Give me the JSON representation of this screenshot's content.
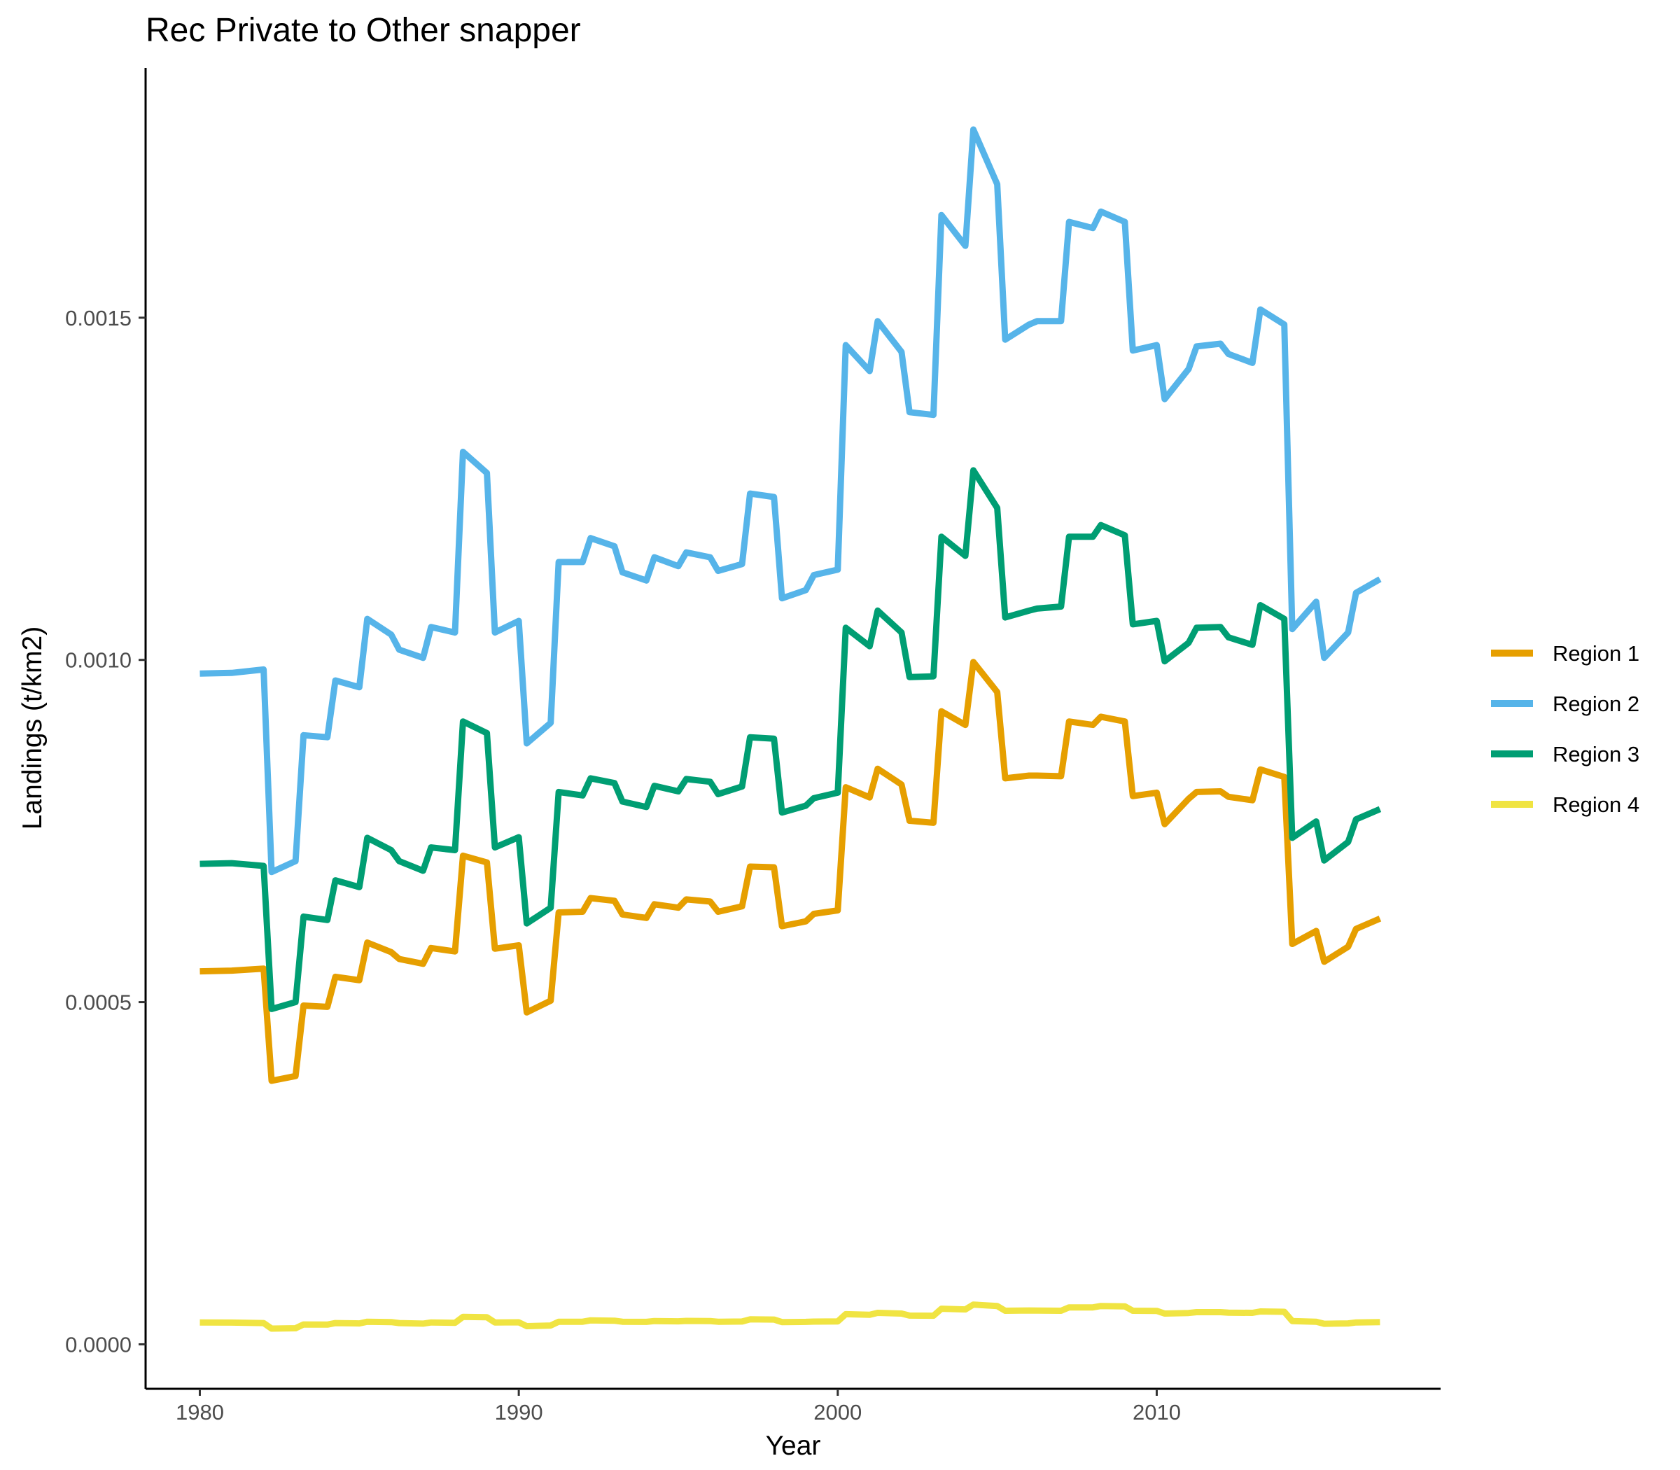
{
  "chart_data": {
    "type": "line",
    "title": "Rec Private to Other snapper",
    "xlabel": "Year",
    "ylabel": "Landings (t/km2)",
    "xlim": [
      1978.3,
      2018.9
    ],
    "ylim": [
      -6.5e-05,
      0.001865
    ],
    "xticks": [
      1980,
      1990,
      2000,
      2010
    ],
    "xtick_labels": [
      "1980",
      "1990",
      "2000",
      "2010"
    ],
    "yticks": [
      0.0,
      0.0005,
      0.001,
      0.0015
    ],
    "ytick_labels": [
      "0.0000",
      "0.0005",
      "0.0010",
      "0.0015"
    ],
    "grid": false,
    "legend_position": "right",
    "x": [
      1980.0,
      1981.0,
      1982.0,
      1982.25,
      1983.0,
      1983.25,
      1984.0,
      1984.25,
      1985.0,
      1985.25,
      1986.0,
      1986.25,
      1987.0,
      1987.25,
      1988.0,
      1988.25,
      1989.0,
      1989.25,
      1990.0,
      1990.25,
      1991.0,
      1991.25,
      1992.0,
      1992.25,
      1993.0,
      1993.25,
      1994.0,
      1994.25,
      1995.0,
      1995.25,
      1996.0,
      1996.25,
      1997.0,
      1997.25,
      1998.0,
      1998.25,
      1999.0,
      1999.25,
      2000.0,
      2000.25,
      2001.0,
      2001.25,
      2002.0,
      2002.25,
      2003.0,
      2003.25,
      2004.0,
      2004.25,
      2005.0,
      2005.25,
      2006.0,
      2006.25,
      2007.0,
      2007.25,
      2008.0,
      2008.25,
      2009.0,
      2009.25,
      2010.0,
      2010.25,
      2011.0,
      2011.25,
      2012.0,
      2012.25,
      2013.0,
      2013.25,
      2014.0,
      2014.25,
      2015.0,
      2015.25,
      2016.0,
      2016.25,
      2017.0
    ],
    "series": [
      {
        "name": "Region 1",
        "color": "#E69F00",
        "values": [
          0.000545,
          0.000546,
          0.000549,
          0.000385,
          0.000392,
          0.000495,
          0.000493,
          0.000537,
          0.000532,
          0.000587,
          0.000573,
          0.000563,
          0.000556,
          0.000579,
          0.000574,
          0.000714,
          0.000704,
          0.000578,
          0.000583,
          0.000485,
          0.000502,
          0.000631,
          0.000632,
          0.000652,
          0.000648,
          0.000628,
          0.000623,
          0.000643,
          0.000638,
          0.00065,
          0.000647,
          0.000632,
          0.00064,
          0.000698,
          0.000697,
          0.000611,
          0.000618,
          0.000629,
          0.000634,
          0.000814,
          0.000799,
          0.000841,
          0.000818,
          0.000765,
          0.000762,
          0.000925,
          0.000905,
          0.000997,
          0.000953,
          0.000827,
          0.000831,
          0.000831,
          0.00083,
          0.00091,
          0.000905,
          0.000917,
          0.00091,
          0.000801,
          0.000806,
          0.00076,
          0.000797,
          0.000807,
          0.000808,
          0.0008,
          0.000795,
          0.00084,
          0.000829,
          0.000585,
          0.000604,
          0.000559,
          0.000581,
          0.000607,
          0.000622
        ]
      },
      {
        "name": "Region 2",
        "color": "#56B4E9",
        "values": [
          0.00098,
          0.000981,
          0.000986,
          0.00069,
          0.000706,
          0.00089,
          0.000887,
          0.00097,
          0.00096,
          0.00106,
          0.001037,
          0.001015,
          0.001003,
          0.001048,
          0.00104,
          0.001304,
          0.001273,
          0.00104,
          0.001057,
          0.000878,
          0.000908,
          0.001143,
          0.001143,
          0.001178,
          0.001166,
          0.001128,
          0.001116,
          0.00115,
          0.001137,
          0.001157,
          0.00115,
          0.00113,
          0.00114,
          0.001243,
          0.001238,
          0.00109,
          0.001102,
          0.001124,
          0.001132,
          0.00146,
          0.001422,
          0.001495,
          0.00145,
          0.001362,
          0.001358,
          0.00165,
          0.001605,
          0.001775,
          0.001695,
          0.001468,
          0.00149,
          0.001495,
          0.001495,
          0.00164,
          0.001631,
          0.001655,
          0.00164,
          0.001452,
          0.00146,
          0.001381,
          0.001425,
          0.001458,
          0.001462,
          0.001447,
          0.001434,
          0.001512,
          0.00149,
          0.001045,
          0.001085,
          0.001003,
          0.00104,
          0.001098,
          0.001118
        ]
      },
      {
        "name": "Region 3",
        "color": "#009E73",
        "values": [
          0.000702,
          0.000703,
          0.000699,
          0.00049,
          0.0005,
          0.000625,
          0.00062,
          0.000678,
          0.000668,
          0.00074,
          0.000722,
          0.000706,
          0.000692,
          0.000726,
          0.000722,
          0.00091,
          0.000893,
          0.000726,
          0.000741,
          0.000615,
          0.000638,
          0.000807,
          0.000802,
          0.000827,
          0.00082,
          0.000793,
          0.000785,
          0.000816,
          0.000808,
          0.000826,
          0.000822,
          0.000804,
          0.000815,
          0.000887,
          0.000885,
          0.000777,
          0.000787,
          0.000798,
          0.000806,
          0.001047,
          0.00102,
          0.001072,
          0.00104,
          0.000975,
          0.000976,
          0.00118,
          0.001152,
          0.001277,
          0.001222,
          0.001062,
          0.001072,
          0.001075,
          0.001078,
          0.00118,
          0.00118,
          0.001197,
          0.001182,
          0.001052,
          0.001057,
          0.000998,
          0.001025,
          0.001047,
          0.001048,
          0.001033,
          0.001022,
          0.00108,
          0.00106,
          0.00074,
          0.000764,
          0.000707,
          0.000734,
          0.000767,
          0.000782
        ]
      },
      {
        "name": "Region 4",
        "color": "#F0E442",
        "values": [
          3.2e-05,
          3.18e-05,
          3.1e-05,
          2.3e-05,
          2.35e-05,
          2.9e-05,
          2.88e-05,
          3.1e-05,
          3.05e-05,
          3.3e-05,
          3.25e-05,
          3.1e-05,
          3.02e-05,
          3.2e-05,
          3.15e-05,
          4e-05,
          3.95e-05,
          3.2e-05,
          3.22e-05,
          2.65e-05,
          2.75e-05,
          3.3e-05,
          3.3e-05,
          3.5e-05,
          3.45e-05,
          3.3e-05,
          3.28e-05,
          3.4e-05,
          3.36e-05,
          3.42e-05,
          3.4e-05,
          3.3e-05,
          3.33e-05,
          3.65e-05,
          3.62e-05,
          3.25e-05,
          3.28e-05,
          3.32e-05,
          3.35e-05,
          4.4e-05,
          4.32e-05,
          4.6e-05,
          4.5e-05,
          4.2e-05,
          4.18e-05,
          5.2e-05,
          5.1e-05,
          5.8e-05,
          5.6e-05,
          4.9e-05,
          4.95e-05,
          4.92e-05,
          4.9e-05,
          5.4e-05,
          5.4e-05,
          5.6e-05,
          5.55e-05,
          4.9e-05,
          4.88e-05,
          4.5e-05,
          4.58e-05,
          4.7e-05,
          4.7e-05,
          4.62e-05,
          4.6e-05,
          4.8e-05,
          4.75e-05,
          3.4e-05,
          3.3e-05,
          3e-05,
          3.05e-05,
          3.2e-05,
          3.25e-05
        ]
      }
    ]
  }
}
